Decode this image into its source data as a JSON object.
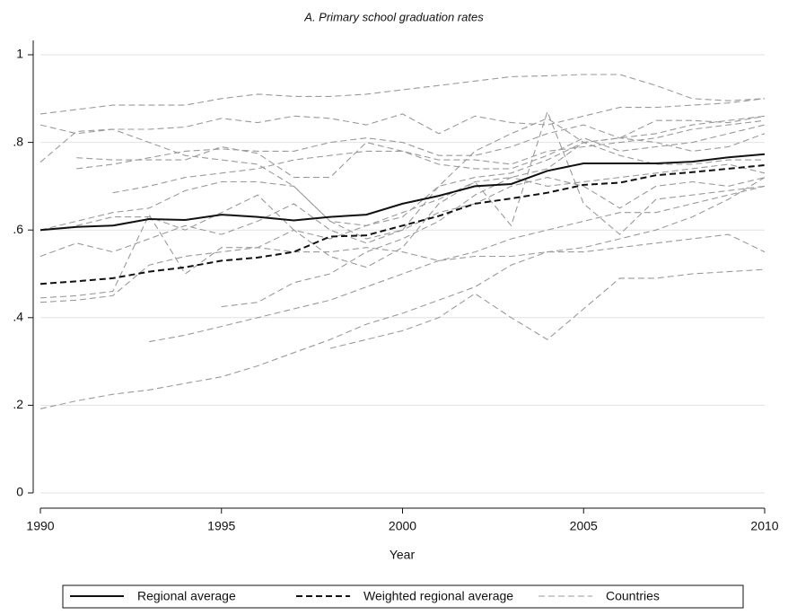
{
  "chart_data": {
    "type": "line",
    "title": "A. Primary school graduation rates",
    "xlabel": "Year",
    "x": [
      1990,
      1991,
      1992,
      1993,
      1994,
      1995,
      1996,
      1997,
      1998,
      1999,
      2000,
      2001,
      2002,
      2003,
      2004,
      2005,
      2006,
      2007,
      2008,
      2009,
      2010
    ],
    "xlim": [
      1990,
      2010
    ],
    "xticks": [
      1990,
      1995,
      2000,
      2005,
      2010
    ],
    "ylim": [
      0,
      1
    ],
    "yticks": [
      0,
      {
        "value": 0.2,
        "label": ".2"
      },
      {
        "value": 0.4,
        "label": ".4"
      },
      {
        "value": 0.6,
        "label": ".6"
      },
      {
        "value": 0.8,
        "label": ".8"
      },
      1
    ],
    "grid": true,
    "series": [
      {
        "name": "Regional average",
        "color": "#111111",
        "dash": "solid",
        "values": [
          0.6,
          0.607,
          0.61,
          0.625,
          0.623,
          0.635,
          0.63,
          0.622,
          0.63,
          0.635,
          0.66,
          0.678,
          0.7,
          0.705,
          0.735,
          0.752,
          0.752,
          0.752,
          0.756,
          0.766,
          0.773
        ]
      },
      {
        "name": "Weighted regional average",
        "color": "#111111",
        "dash": "dashed",
        "values": [
          0.477,
          0.483,
          0.49,
          0.505,
          0.515,
          0.53,
          0.537,
          0.55,
          0.585,
          0.588,
          0.61,
          0.632,
          0.66,
          0.672,
          0.685,
          0.703,
          0.708,
          0.725,
          0.732,
          0.74,
          0.748
        ]
      }
    ],
    "countries": {
      "name": "Countries",
      "color": "#9a9a9a",
      "dash": "dashed",
      "lines": [
        [
          0.865,
          0.875,
          0.885,
          0.885,
          0.885,
          0.9,
          0.91,
          0.905,
          0.905,
          0.91,
          0.92,
          0.93,
          0.94,
          0.95,
          0.952,
          0.955,
          0.955,
          0.93,
          0.9,
          0.895,
          0.9
        ],
        [
          0.84,
          0.82,
          0.83,
          0.83,
          0.835,
          0.855,
          0.845,
          0.86,
          0.855,
          0.84,
          0.865,
          0.82,
          0.86,
          0.845,
          0.84,
          0.86,
          0.88,
          0.88,
          0.885,
          0.89,
          0.9
        ],
        [
          0.755,
          0.825,
          0.83,
          0.8,
          0.77,
          0.76,
          0.75,
          0.7,
          0.62,
          0.58,
          0.6,
          0.7,
          0.78,
          0.82,
          0.855,
          0.8,
          0.81,
          0.85,
          0.85,
          0.845,
          0.86
        ],
        [
          null,
          0.765,
          0.76,
          0.76,
          0.76,
          0.79,
          0.775,
          0.72,
          0.72,
          0.8,
          0.78,
          0.75,
          0.74,
          0.74,
          0.77,
          0.81,
          0.78,
          0.79,
          0.8,
          0.82,
          0.84
        ],
        [
          null,
          0.74,
          0.75,
          0.765,
          0.78,
          0.785,
          0.78,
          0.78,
          0.8,
          0.81,
          0.8,
          0.77,
          0.77,
          0.79,
          0.82,
          0.84,
          0.81,
          0.8,
          0.78,
          0.79,
          0.82
        ],
        [
          null,
          null,
          0.685,
          0.7,
          0.72,
          0.73,
          0.74,
          0.76,
          0.77,
          0.78,
          0.78,
          0.76,
          0.76,
          0.75,
          0.78,
          0.79,
          0.8,
          0.81,
          0.83,
          0.84,
          0.85
        ],
        [
          0.6,
          0.62,
          0.64,
          0.65,
          0.69,
          0.71,
          0.71,
          0.7,
          0.62,
          0.61,
          0.63,
          0.7,
          0.72,
          0.73,
          0.76,
          0.8,
          0.77,
          0.75,
          0.75,
          0.76,
          0.76
        ],
        [
          0.54,
          0.57,
          0.55,
          0.58,
          0.61,
          0.59,
          0.62,
          0.66,
          0.6,
          0.57,
          0.6,
          0.64,
          0.66,
          0.7,
          0.72,
          0.7,
          0.65,
          0.7,
          0.71,
          0.7,
          0.72
        ],
        [
          0.445,
          0.45,
          0.46,
          0.635,
          0.5,
          0.56,
          0.56,
          0.6,
          0.54,
          0.515,
          0.56,
          0.66,
          0.71,
          0.61,
          0.87,
          0.66,
          0.59,
          0.67,
          0.68,
          0.69,
          0.7
        ],
        [
          0.435,
          0.44,
          0.45,
          0.52,
          0.54,
          0.55,
          0.56,
          0.55,
          0.55,
          0.56,
          0.55,
          0.53,
          0.54,
          0.54,
          0.55,
          0.55,
          0.56,
          0.57,
          0.58,
          0.59,
          0.55
        ],
        [
          null,
          null,
          null,
          0.345,
          0.36,
          0.38,
          0.4,
          0.42,
          0.44,
          0.47,
          0.5,
          0.53,
          0.55,
          0.58,
          0.6,
          0.62,
          0.64,
          0.64,
          0.66,
          0.68,
          0.7
        ],
        [
          0.192,
          0.21,
          0.225,
          0.235,
          0.25,
          0.265,
          0.29,
          0.32,
          0.35,
          0.385,
          0.41,
          0.44,
          0.47,
          0.52,
          0.55,
          0.56,
          0.58,
          0.6,
          0.63,
          0.67,
          0.72
        ],
        [
          null,
          null,
          null,
          null,
          null,
          null,
          null,
          null,
          0.33,
          0.35,
          0.37,
          0.4,
          0.455,
          0.4,
          0.35,
          0.42,
          0.49,
          0.49,
          0.5,
          0.505,
          0.51
        ],
        [
          null,
          null,
          null,
          null,
          null,
          0.425,
          0.435,
          0.48,
          0.5,
          0.55,
          0.58,
          0.62,
          0.68,
          0.72,
          0.7,
          0.71,
          0.72,
          0.73,
          0.74,
          0.75,
          0.73
        ],
        [
          null,
          0.61,
          0.63,
          0.63,
          0.6,
          0.64,
          0.68,
          0.6,
          0.58,
          0.61,
          0.64,
          0.67,
          0.71,
          0.72,
          0.74,
          0.8,
          0.81,
          0.82,
          0.84,
          0.85,
          0.86
        ]
      ]
    }
  }
}
